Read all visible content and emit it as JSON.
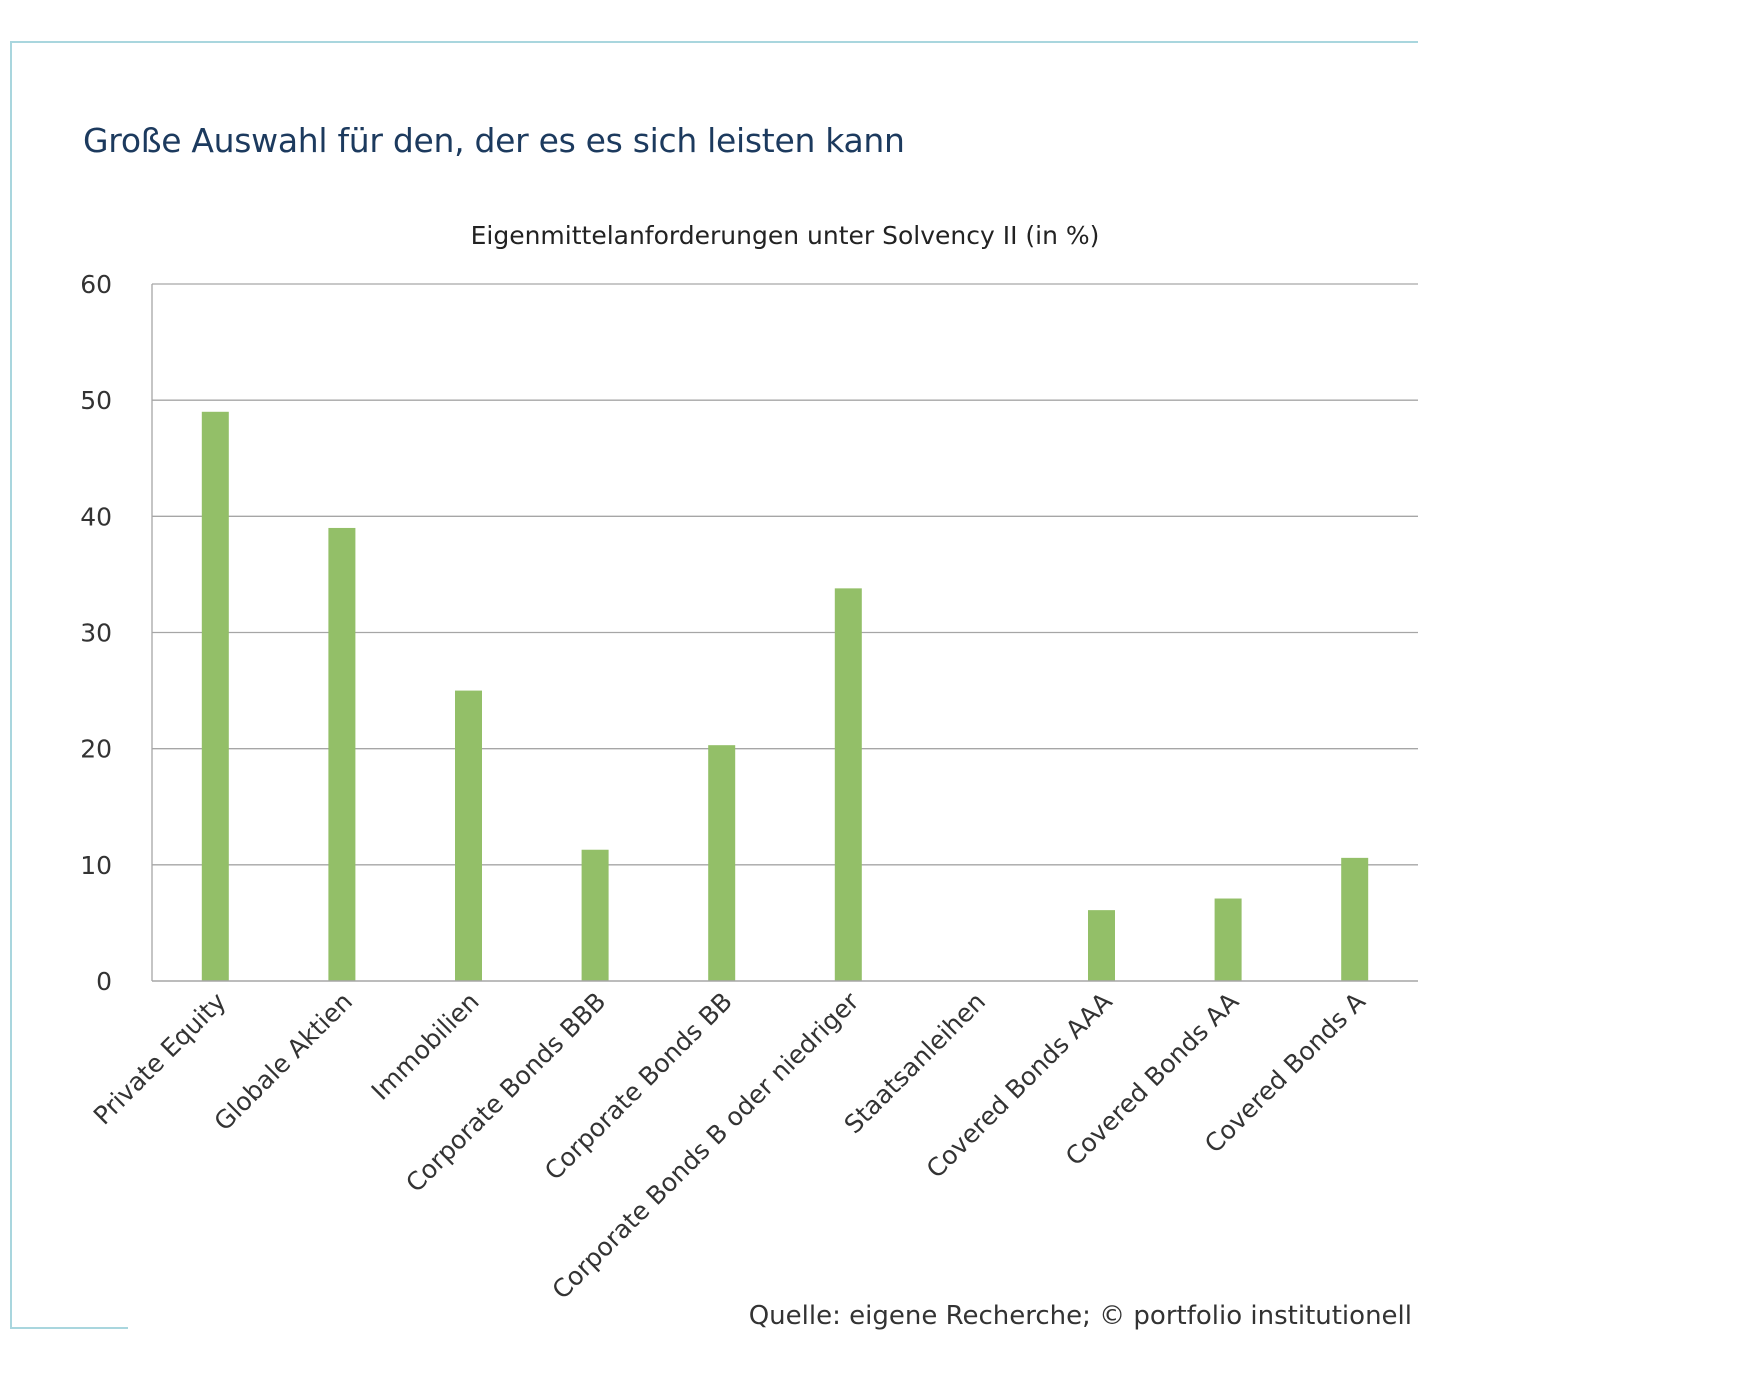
{
  "headline": "Große Auswahl für den, der es es sich leisten kann",
  "source": "Quelle: eigene Recherche; © portfolio institutionell",
  "colors": {
    "bar": "#93bf68",
    "grid": "#a6a6a6",
    "frame": "#a9d6de",
    "headline": "#1c3a5e"
  },
  "chart_data": {
    "type": "bar",
    "title": "Eigenmittelanforderungen unter Solvency II (in %)",
    "xlabel": "",
    "ylabel": "",
    "ylim": [
      0,
      60
    ],
    "yticks": [
      0,
      10,
      20,
      30,
      40,
      50,
      60
    ],
    "grid": true,
    "categories": [
      "Private Equity",
      "Globale Aktien",
      "Immobilien",
      "Corporate Bonds BBB",
      "Corporate Bonds BB",
      "Corporate Bonds B oder niedriger",
      "Staatsanleihen",
      "Covered Bonds AAA",
      "Covered Bonds AA",
      "Covered Bonds A"
    ],
    "values": [
      49,
      39,
      25,
      11.3,
      20.3,
      33.8,
      0,
      6.1,
      7.1,
      10.6
    ]
  }
}
